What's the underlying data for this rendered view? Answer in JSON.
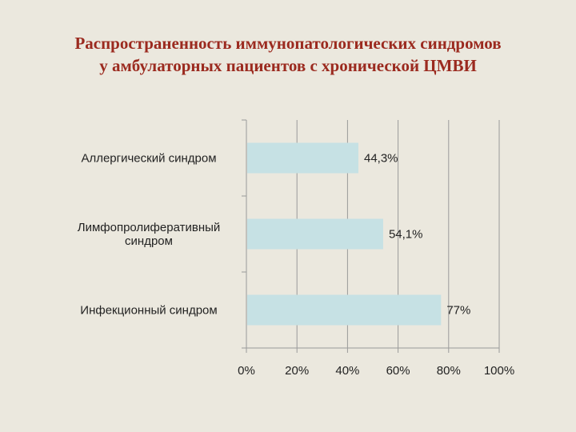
{
  "slide": {
    "title_line1": "Распространенность иммунопатологических синдромов",
    "title_line2": "у амбулаторных пациентов с хронической ЦМВИ"
  },
  "colors": {
    "background": "#ebe8de",
    "title": "#9b2a1f",
    "bar": "#c6e1e4",
    "grid": "#9a9a9a"
  },
  "chart_data": {
    "type": "bar",
    "orientation": "horizontal",
    "categories": [
      [
        "Аллергический синдром"
      ],
      [
        "Лимфопролиферативный",
        "синдром"
      ],
      [
        "Инфекционный синдром"
      ]
    ],
    "values": [
      44.3,
      54.1,
      77
    ],
    "value_labels": [
      "44,3%",
      "54,1%",
      "77%"
    ],
    "xlim": [
      0,
      100
    ],
    "xticks": [
      0,
      20,
      40,
      60,
      80,
      100
    ],
    "xtick_labels": [
      "0%",
      "20%",
      "40%",
      "60%",
      "80%",
      "100%"
    ],
    "grid": true,
    "legend": "none"
  }
}
